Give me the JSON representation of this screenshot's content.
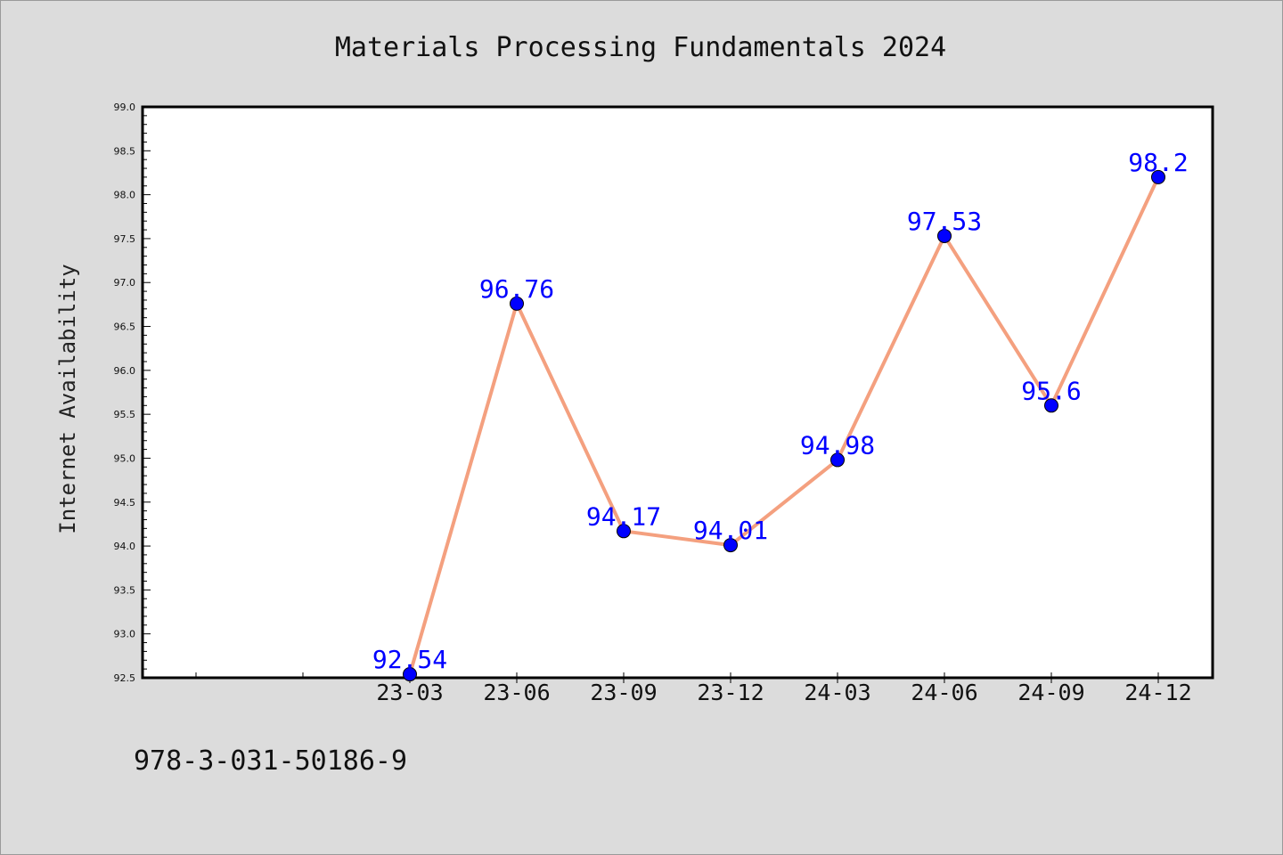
{
  "chart_data": {
    "type": "line",
    "title": "Materials Processing Fundamentals 2024",
    "xlabel": "",
    "ylabel": "Internet Availability",
    "categories": [
      "23-03",
      "23-06",
      "23-09",
      "23-12",
      "24-03",
      "24-06",
      "24-09",
      "24-12"
    ],
    "series": [
      {
        "values": [
          92.54,
          96.76,
          94.17,
          94.01,
          94.98,
          97.53,
          95.6,
          98.2
        ]
      }
    ],
    "data_labels": [
      "92.54",
      "96.76",
      "94.17",
      "94.01",
      "94.98",
      "97.53",
      "95.6",
      "98.2"
    ],
    "ylim": [
      92.5,
      99.0
    ],
    "yticks": [
      "92.5",
      "93.0",
      "93.5",
      "94.0",
      "94.5",
      "95.0",
      "95.5",
      "96.0",
      "96.5",
      "97.0",
      "97.5",
      "98.0",
      "98.5",
      "99.0"
    ],
    "grid": false,
    "line_color": "#f4a07f",
    "marker_color": "#0000ff",
    "label_color": "#0000ff",
    "background": "#dcdcdc",
    "plot_background": "#ffffff"
  },
  "footer": {
    "isbn": "978-3-031-50186-9"
  }
}
